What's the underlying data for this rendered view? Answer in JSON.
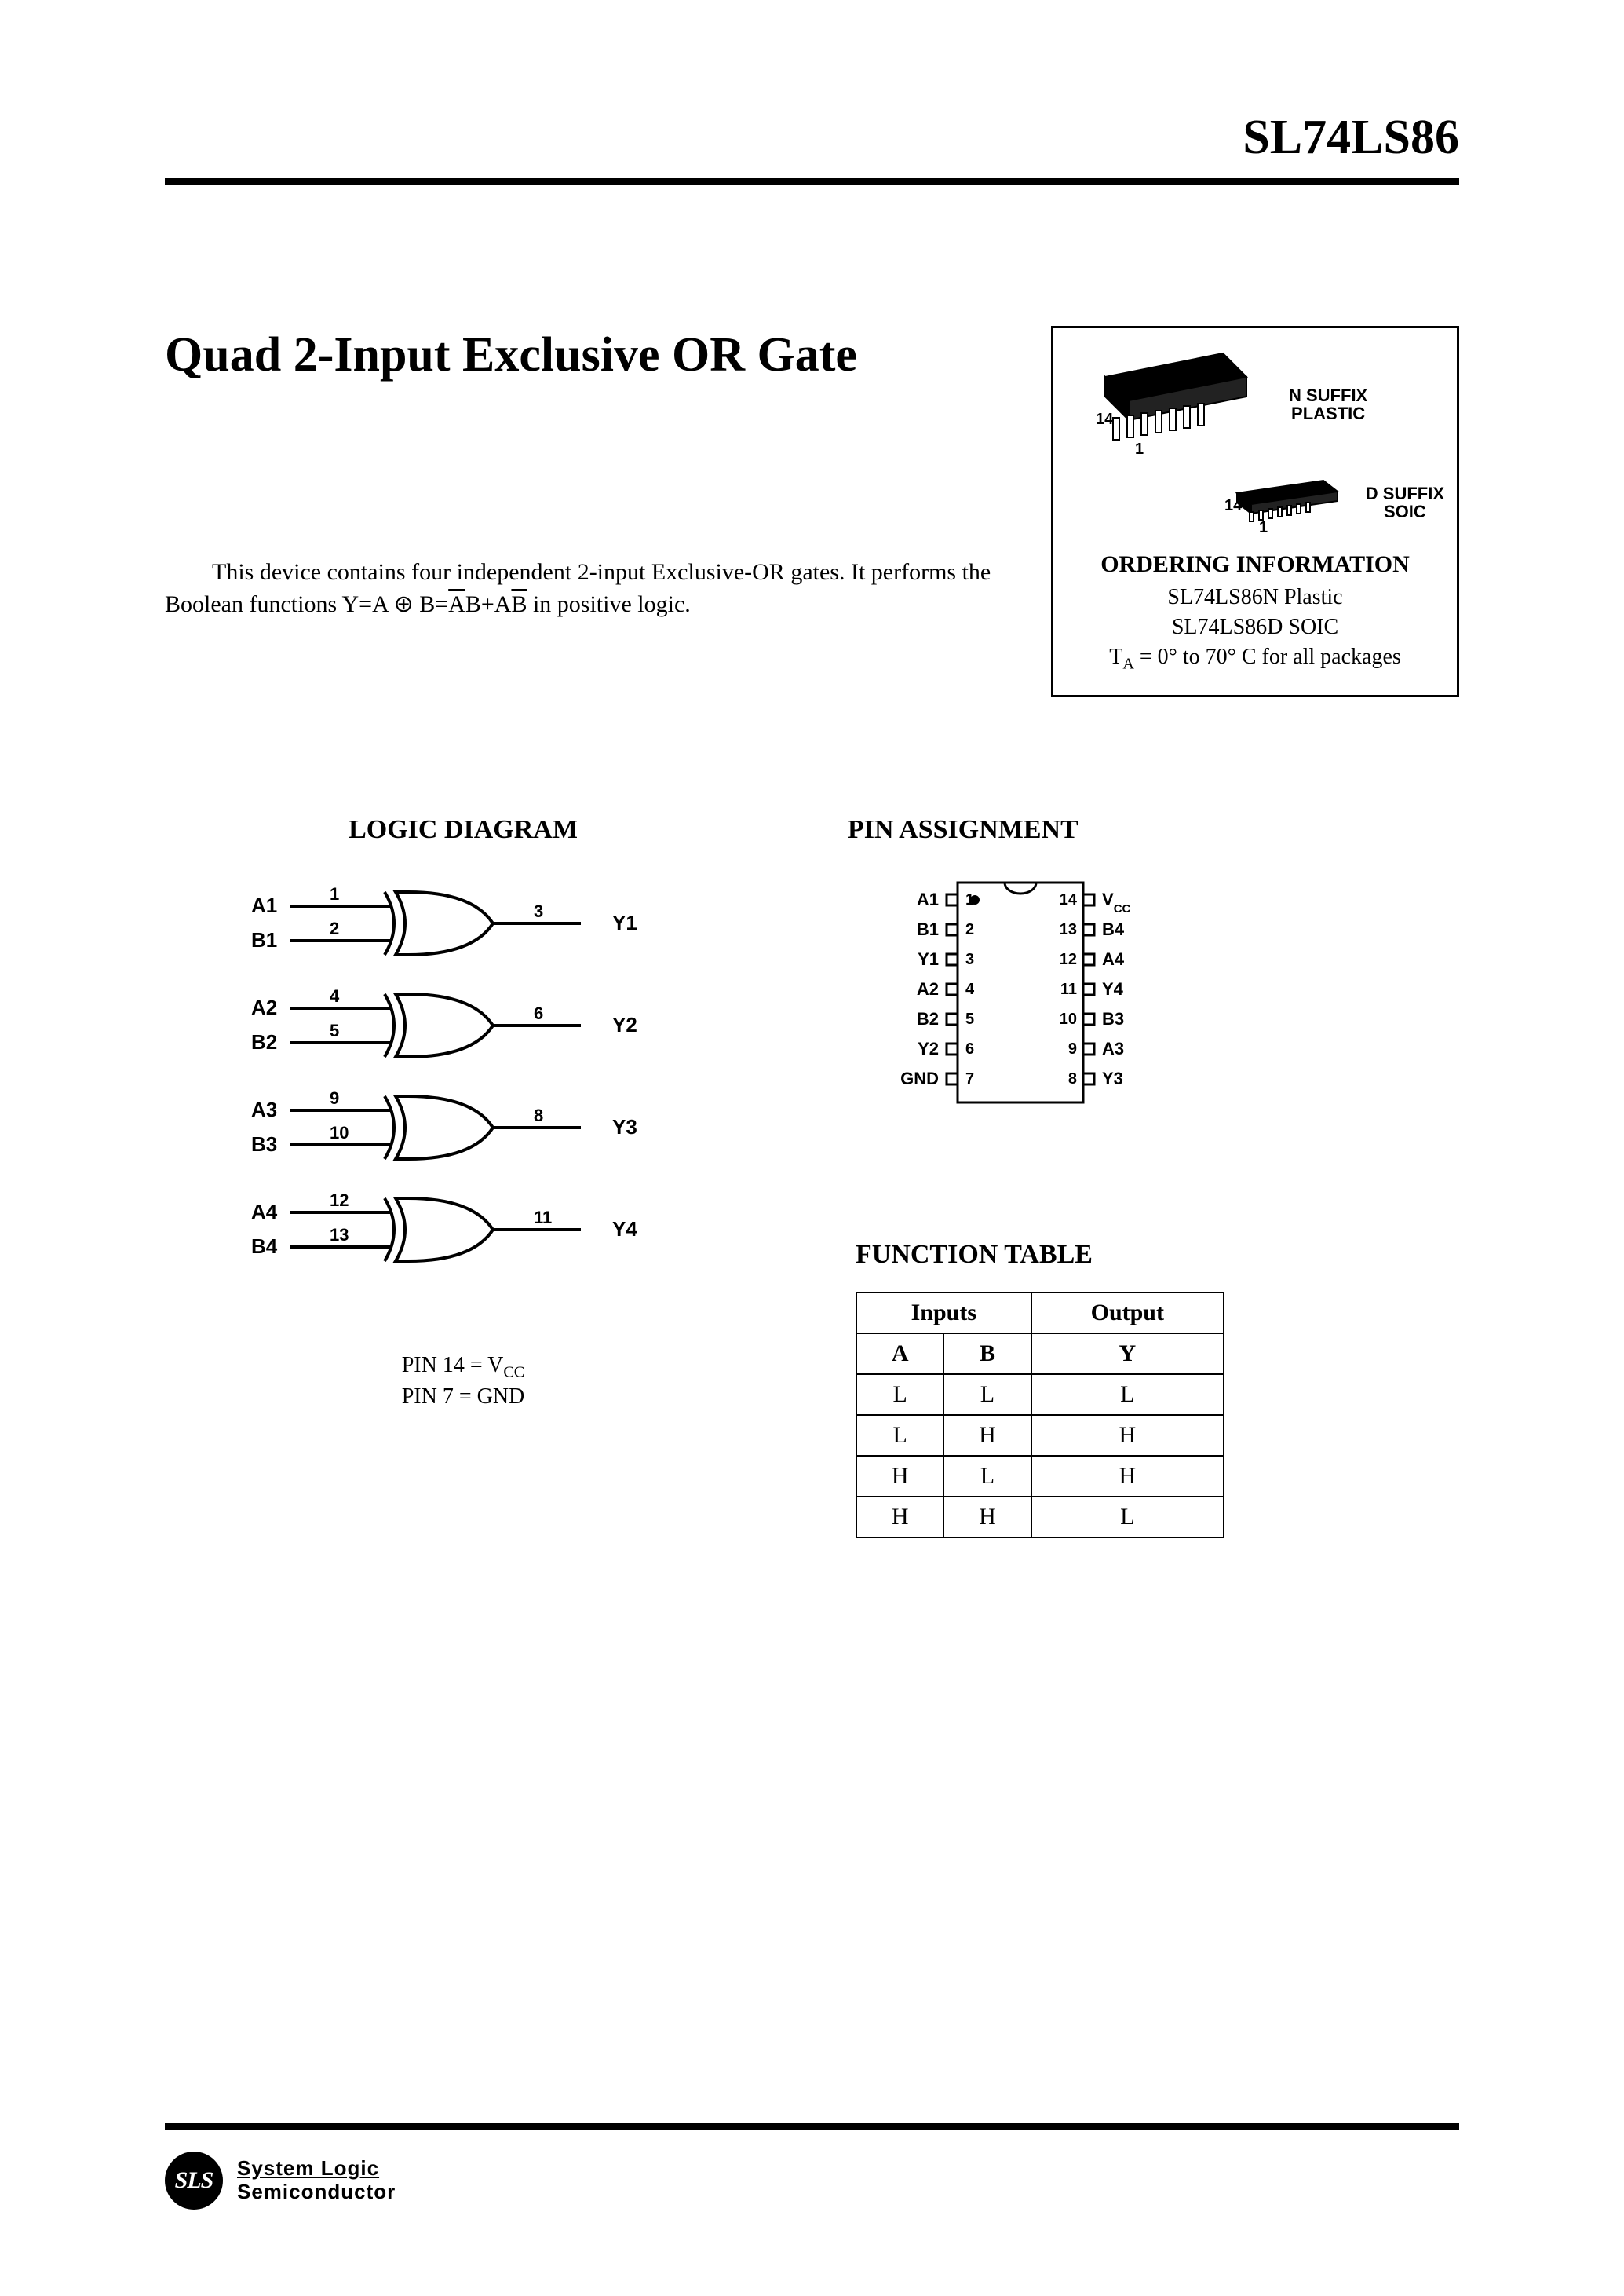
{
  "header": {
    "part_number": "SL74LS86"
  },
  "title": "Quad 2-Input Exclusive OR Gate",
  "description_pre": "This device contains four independent 2-input Exclusive-OR gates. It performs the Boolean functions Y=A ⊕ B=",
  "description_over1": "A",
  "description_mid": "B+A",
  "description_over2": "B",
  "description_post": " in positive logic.",
  "ordering": {
    "heading": "ORDERING INFORMATION",
    "line1": "SL74LS86N Plastic",
    "line2": "SL74LS86D SOIC",
    "line3_pre": "T",
    "line3_sub": "A",
    "line3_post": " = 0° to 70° C for all packages",
    "pkg_n_suffix": "N SUFFIX",
    "pkg_n_type": "PLASTIC",
    "pkg_n_14": "14",
    "pkg_n_1": "1",
    "pkg_d_suffix": "D SUFFIX",
    "pkg_d_type": "SOIC",
    "pkg_d_14": "14",
    "pkg_d_1": "1"
  },
  "logic_diagram": {
    "heading": "LOGIC DIAGRAM",
    "gates": [
      {
        "a": "A1",
        "b": "B1",
        "y": "Y1",
        "pa": "1",
        "pb": "2",
        "py": "3"
      },
      {
        "a": "A2",
        "b": "B2",
        "y": "Y2",
        "pa": "4",
        "pb": "5",
        "py": "6"
      },
      {
        "a": "A3",
        "b": "B3",
        "y": "Y3",
        "pa": "9",
        "pb": "10",
        "py": "8"
      },
      {
        "a": "A4",
        "b": "B4",
        "y": "Y4",
        "pa": "12",
        "pb": "13",
        "py": "11"
      }
    ],
    "note1_pre": "PIN 14 = V",
    "note1_sub": "CC",
    "note2": "PIN 7 = GND"
  },
  "pin_assignment": {
    "heading": "PIN ASSIGNMENT",
    "left_pins": [
      {
        "name": "A1",
        "num": "1"
      },
      {
        "name": "B1",
        "num": "2"
      },
      {
        "name": "Y1",
        "num": "3"
      },
      {
        "name": "A2",
        "num": "4"
      },
      {
        "name": "B2",
        "num": "5"
      },
      {
        "name": "Y2",
        "num": "6"
      },
      {
        "name": "GND",
        "num": "7"
      }
    ],
    "right_pins": [
      {
        "num": "14",
        "name": "V",
        "sub": "CC"
      },
      {
        "num": "13",
        "name": "B4"
      },
      {
        "num": "12",
        "name": "A4"
      },
      {
        "num": "11",
        "name": "Y4"
      },
      {
        "num": "10",
        "name": "B3"
      },
      {
        "num": "9",
        "name": "A3"
      },
      {
        "num": "8",
        "name": "Y3"
      }
    ]
  },
  "function_table": {
    "heading": "FUNCTION TABLE",
    "group_inputs": "Inputs",
    "group_output": "Output",
    "col_a": "A",
    "col_b": "B",
    "col_y": "Y",
    "rows": [
      {
        "a": "L",
        "b": "L",
        "y": "L"
      },
      {
        "a": "L",
        "b": "H",
        "y": "H"
      },
      {
        "a": "H",
        "b": "L",
        "y": "H"
      },
      {
        "a": "H",
        "b": "H",
        "y": "L"
      }
    ]
  },
  "footer": {
    "badge": "SLS",
    "line1": "System Logic",
    "line2": "Semiconductor"
  },
  "colors": {
    "text": "#000000",
    "bg": "#ffffff",
    "rule": "#000000"
  }
}
